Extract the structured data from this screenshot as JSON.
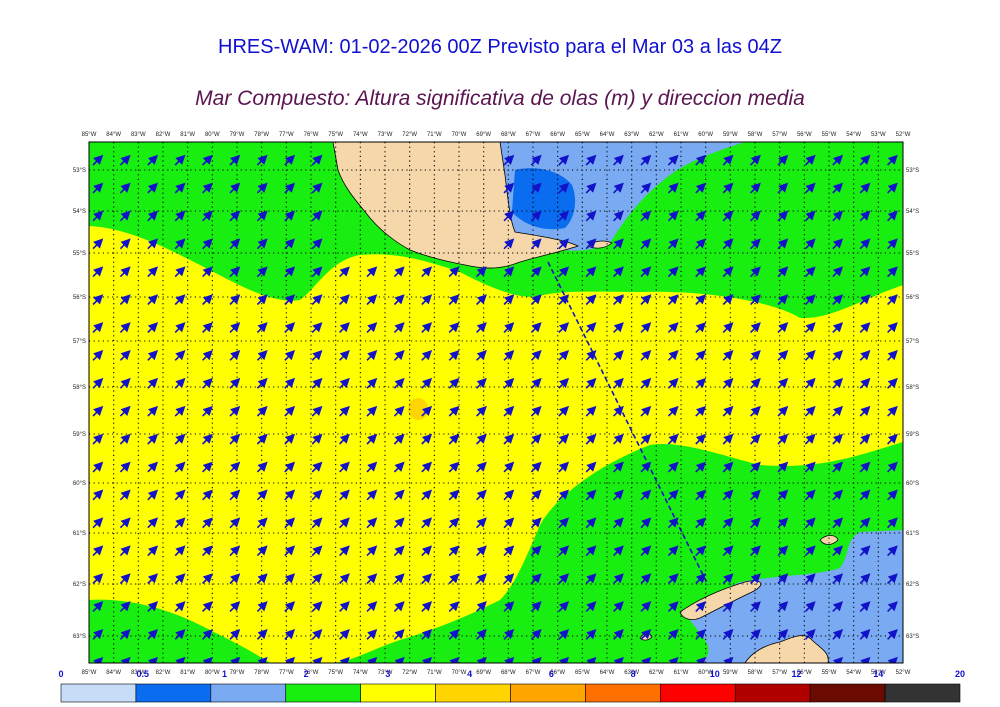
{
  "header": {
    "title": "HRES-WAM: 01-02-2026 00Z Previsto para el Mar 03 a las 04Z",
    "subtitle": "Mar Compuesto: Altura significativa de olas (m) y direccion media"
  },
  "map": {
    "lon_labels": [
      "85°W",
      "84°W",
      "83°W",
      "82°W",
      "81°W",
      "80°W",
      "79°W",
      "78°W",
      "77°W",
      "76°W",
      "75°W",
      "74°W",
      "73°W",
      "72°W",
      "71°W",
      "70°W",
      "69°W",
      "68°W",
      "67°W",
      "66°W",
      "65°W",
      "64°W",
      "63°W",
      "62°W",
      "61°W",
      "60°W",
      "59°W",
      "58°W",
      "57°W",
      "56°W",
      "55°W",
      "54°W",
      "53°W",
      "52°W"
    ],
    "lat_labels": [
      "53°S",
      "54°S",
      "55°S",
      "56°S",
      "57°S",
      "58°S",
      "59°S",
      "60°S",
      "61°S",
      "62°S",
      "63°S"
    ],
    "lon_range": [
      -85,
      -52
    ],
    "lat_range": [
      -63.6,
      -52.6
    ],
    "arrow_direction": "northeast",
    "colors": {
      "land": "#f5d7a9",
      "ocean_green": "#18ee10",
      "ocean_yellow": "#ffff00",
      "ocean_blue_light": "#7aaaf2",
      "ocean_blue_dark": "#0a6cef",
      "arrow": "#1212c8"
    }
  },
  "colorbar": {
    "unit": "m",
    "labels": [
      "0",
      "0.5",
      "1",
      "2",
      "3",
      "4",
      "6",
      "8",
      "10",
      "12",
      "14",
      "20"
    ],
    "colors": [
      "#c6dcf7",
      "#0a6cef",
      "#7aaaf2",
      "#18ee10",
      "#ffff00",
      "#ffd500",
      "#ffa500",
      "#ff7000",
      "#ff0000",
      "#b00000",
      "#6a0a00",
      "#333333"
    ]
  }
}
